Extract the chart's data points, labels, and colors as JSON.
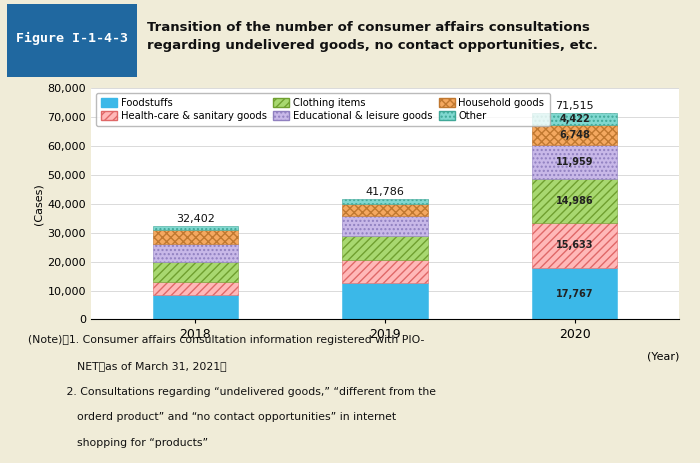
{
  "years": [
    "2018",
    "2019",
    "2020"
  ],
  "year_label": "(Year)",
  "categories": [
    "Foodstuffs",
    "Health-care & sanitary goods",
    "Clothing items",
    "Educational & leisure goods",
    "Household goods",
    "Other"
  ],
  "values": {
    "2018": [
      8500,
      4300,
      7200,
      6000,
      4900,
      1502
    ],
    "2019": [
      12500,
      8200,
      8000,
      7200,
      4100,
      1786
    ],
    "2020": [
      17767,
      15633,
      14986,
      11959,
      6748,
      4422
    ]
  },
  "totals": {
    "2018": 32402,
    "2019": 41786,
    "2020": 71515
  },
  "segment_labels_2020": [
    17767,
    15633,
    14986,
    11959,
    6748,
    4422
  ],
  "bar_width": 0.45,
  "ylim": [
    0,
    80000
  ],
  "yticks": [
    0,
    10000,
    20000,
    30000,
    40000,
    50000,
    60000,
    70000,
    80000
  ],
  "ylabel": "(Cases)",
  "title_box_text": "Figure I-1-4-3",
  "title_text": "Transition of the number of consumer affairs consultations\nregarding undelivered goods, no contact opportunities, etc.",
  "bg_color": "#F0ECD8",
  "header_bg": "#2068A0",
  "chart_bg": "#FFFFFF",
  "note_line1": "(Note)　1. Consumer affairs consultation information registered with PIO-",
  "note_line2": "              NET（as of March 31, 2021）",
  "note_line3": "           2. Consultations regarding “undelivered goods,” “different from the",
  "note_line4": "              orderd product” and “no contact opportunities” in internet",
  "note_line5": "              shopping for “products”"
}
